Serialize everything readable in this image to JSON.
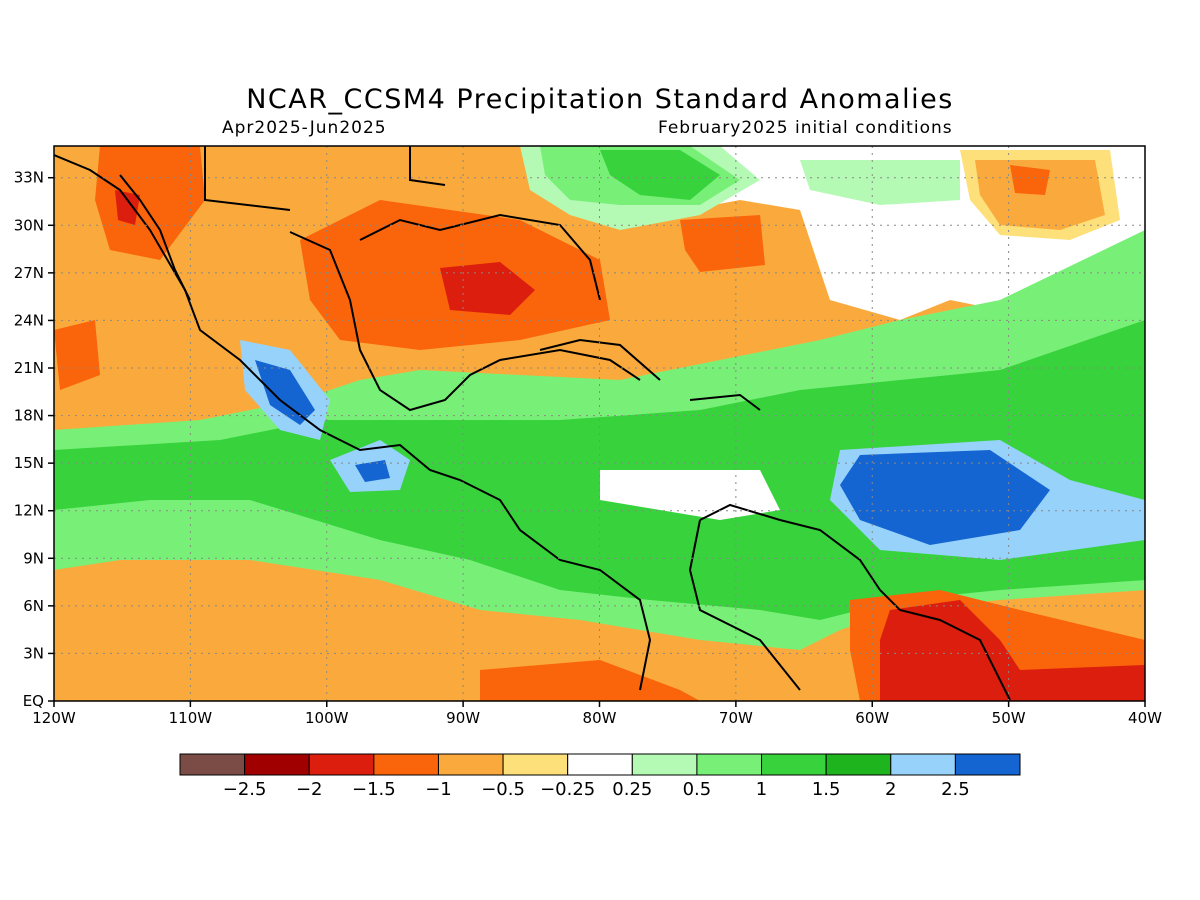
{
  "header": {
    "title": "NCAR_CCSM4 Precipitation Standard Anomalies",
    "period": "Apr2025-Jun2025",
    "init": "February2025 initial conditions"
  },
  "map": {
    "lon_range": [
      -120,
      -40
    ],
    "lat_range": [
      0,
      35
    ],
    "lon_ticks": [
      {
        "value": -120,
        "label": "120W"
      },
      {
        "value": -110,
        "label": "110W"
      },
      {
        "value": -100,
        "label": "100W"
      },
      {
        "value": -90,
        "label": "90W"
      },
      {
        "value": -80,
        "label": "80W"
      },
      {
        "value": -70,
        "label": "70W"
      },
      {
        "value": -60,
        "label": "60W"
      },
      {
        "value": -50,
        "label": "50W"
      },
      {
        "value": -40,
        "label": "40W"
      }
    ],
    "lat_ticks": [
      {
        "value": 0,
        "label": "EQ"
      },
      {
        "value": 3,
        "label": "3N"
      },
      {
        "value": 6,
        "label": "6N"
      },
      {
        "value": 9,
        "label": "9N"
      },
      {
        "value": 12,
        "label": "12N"
      },
      {
        "value": 15,
        "label": "15N"
      },
      {
        "value": 18,
        "label": "18N"
      },
      {
        "value": 21,
        "label": "21N"
      },
      {
        "value": 24,
        "label": "24N"
      },
      {
        "value": 27,
        "label": "27N"
      },
      {
        "value": 30,
        "label": "30N"
      },
      {
        "value": 33,
        "label": "33N"
      }
    ],
    "grid": "dotted"
  },
  "colorbar": {
    "colors": [
      "#7b4c45",
      "#a00000",
      "#dc1e0e",
      "#fa640a",
      "#faaa3c",
      "#fde07a",
      "#ffffff",
      "#b4fab4",
      "#78f078",
      "#37d23c",
      "#1eb41e",
      "#96d2fa",
      "#1464d2"
    ],
    "labels": [
      "-2.5",
      "-2",
      "-1.5",
      "-1",
      "-0.5",
      "-0.25",
      "0.25",
      "0.5",
      "1",
      "1.5",
      "2",
      "2.5"
    ]
  }
}
